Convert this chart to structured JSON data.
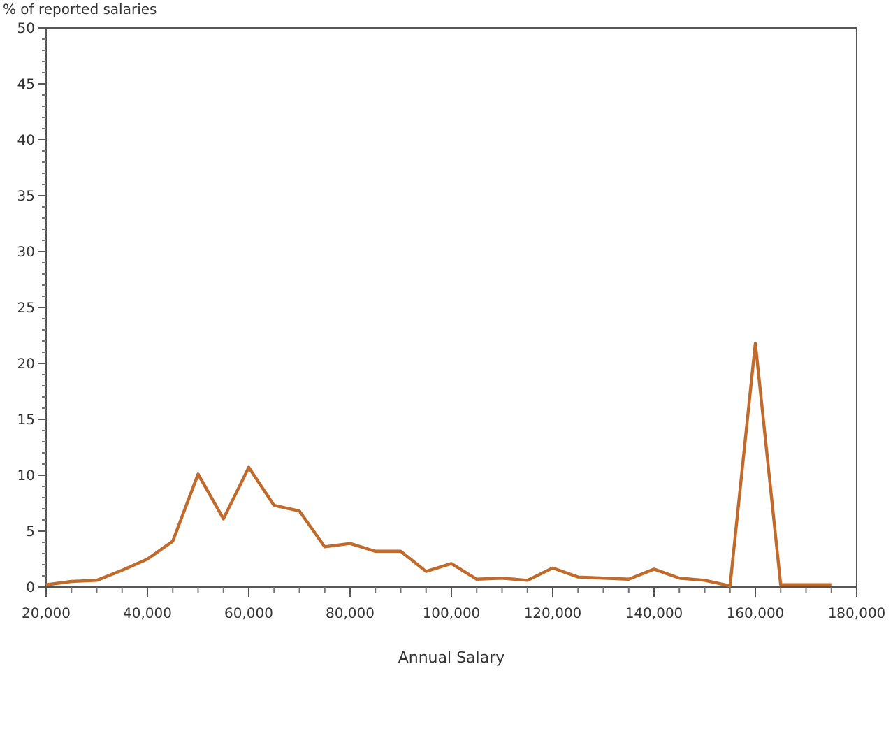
{
  "chart_data": {
    "type": "line",
    "ylabel": "% of reported salaries",
    "xlabel": "Annual Salary",
    "x": [
      20000,
      25000,
      30000,
      35000,
      40000,
      45000,
      50000,
      55000,
      60000,
      65000,
      70000,
      75000,
      80000,
      85000,
      90000,
      95000,
      100000,
      105000,
      110000,
      115000,
      120000,
      125000,
      130000,
      135000,
      140000,
      145000,
      150000,
      155000,
      160000,
      165000,
      170000,
      175000
    ],
    "series": [
      {
        "color": "#c06a2b",
        "values": [
          0.2,
          0.5,
          0.6,
          1.5,
          2.5,
          4.1,
          10.1,
          6.1,
          10.7,
          7.3,
          6.8,
          3.6,
          3.9,
          3.2,
          3.2,
          1.4,
          2.1,
          0.7,
          0.8,
          0.6,
          1.7,
          0.9,
          0.8,
          0.7,
          1.6,
          0.8,
          0.6,
          0.1,
          21.8,
          0.2,
          0.2,
          0.2
        ]
      }
    ],
    "xlim": [
      20000,
      180000
    ],
    "xticks": [
      {
        "value": 20000,
        "label": "20,000"
      },
      {
        "value": 40000,
        "label": "40,000"
      },
      {
        "value": 60000,
        "label": "60,000"
      },
      {
        "value": 80000,
        "label": "80,000"
      },
      {
        "value": 100000,
        "label": "100,000"
      },
      {
        "value": 120000,
        "label": "120,000"
      },
      {
        "value": 140000,
        "label": "140,000"
      },
      {
        "value": 160000,
        "label": "160,000"
      },
      {
        "value": 180000,
        "label": "180,000"
      }
    ],
    "ylim": [
      0,
      50
    ],
    "yticks": [
      0,
      5,
      10,
      15,
      20,
      25,
      30,
      35,
      40,
      45,
      50
    ],
    "grid": false,
    "marker": "none",
    "line_style": "solid"
  }
}
